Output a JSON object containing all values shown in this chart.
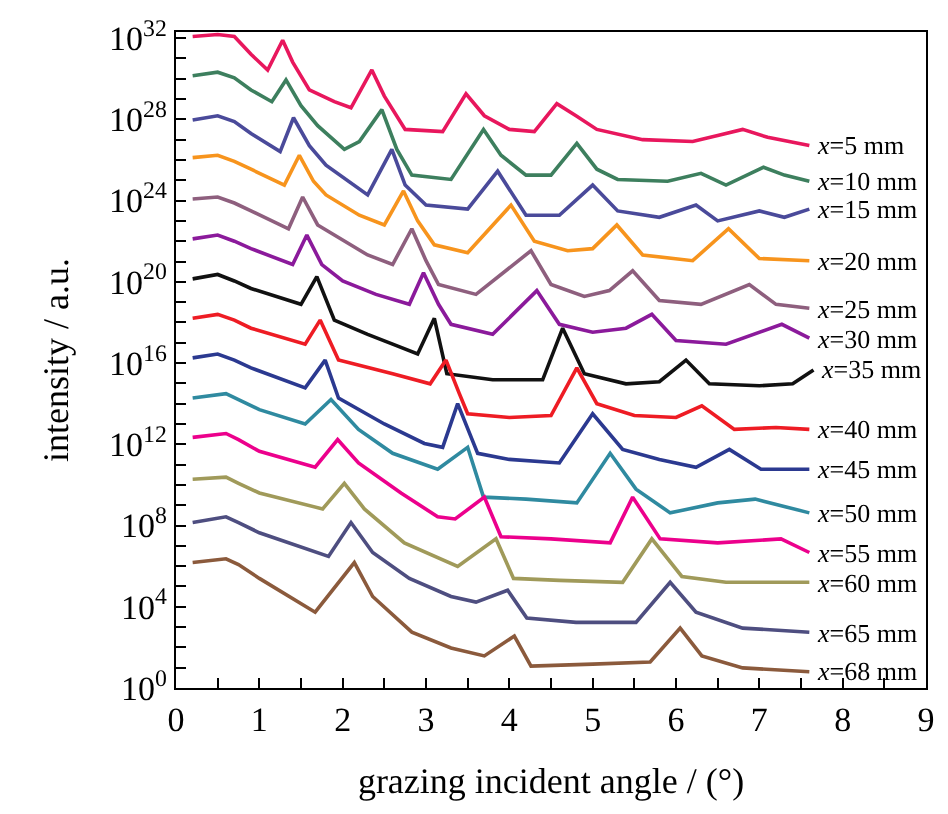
{
  "chart_data": {
    "type": "line",
    "xlabel": "grazing incident angle / (°)",
    "ylabel": "intensity / a.u.",
    "log": "y",
    "xlim": [
      0,
      9
    ],
    "xticks": [
      0,
      {
        "value": 0.5,
        "label": null
      },
      1,
      {
        "value": 1.5,
        "label": null
      },
      2,
      {
        "value": 2.5,
        "label": null
      },
      3,
      {
        "value": 3.5,
        "label": null
      },
      4,
      {
        "value": 4.5,
        "label": null
      },
      5,
      {
        "value": 5.5,
        "label": null
      },
      6,
      {
        "value": 6.5,
        "label": null
      },
      7,
      {
        "value": 7.5,
        "label": null
      },
      8,
      {
        "value": 8.5,
        "label": null
      },
      9
    ],
    "ylim": [
      1,
      2e+32
    ],
    "yticks": [
      {
        "value": 1,
        "label": "10$^{0}$"
      },
      {
        "value": 10.0,
        "label": null
      },
      {
        "value": 100.0,
        "label": null
      },
      {
        "value": 1000.0,
        "label": null
      },
      {
        "value": 10000.0,
        "label": "10$^{4}$"
      },
      {
        "value": 100000.0,
        "label": null
      },
      {
        "value": 1000000.0,
        "label": null
      },
      {
        "value": 10000000.0,
        "label": null
      },
      {
        "value": 100000000.0,
        "label": "10$^{8}$"
      },
      {
        "value": 1000000000.0,
        "label": null
      },
      {
        "value": 10000000000.0,
        "label": null
      },
      {
        "value": 100000000000.0,
        "label": null
      },
      {
        "value": 1000000000000.0,
        "label": "10$^{12}$"
      },
      {
        "value": 10000000000000.0,
        "label": null
      },
      {
        "value": 100000000000000.0,
        "label": null
      },
      {
        "value": 1000000000000000.0,
        "label": null
      },
      {
        "value": 1e+16,
        "label": "10$^{16}$"
      },
      {
        "value": 1e+17,
        "label": null
      },
      {
        "value": 1e+18,
        "label": null
      },
      {
        "value": 1e+19,
        "label": null
      },
      {
        "value": 1e+20,
        "label": "10$^{20}$"
      },
      {
        "value": 1e+21,
        "label": null
      },
      {
        "value": 1e+22,
        "label": null
      },
      {
        "value": 1e+23,
        "label": null
      },
      {
        "value": 1e+24,
        "label": "10$^{24}$"
      },
      {
        "value": 1e+25,
        "label": null
      },
      {
        "value": 1e+26,
        "label": null
      },
      {
        "value": 1e+27,
        "label": null
      },
      {
        "value": 1e+28,
        "label": "10$^{28}$"
      },
      {
        "value": 1e+29,
        "label": null
      },
      {
        "value": 1e+30,
        "label": null
      },
      {
        "value": 1e+31,
        "label": null
      },
      {
        "value": 1e+32,
        "label": "10$^{32}$"
      }
    ],
    "series": [
      {
        "name": "x=5 mm",
        "color": "#e8175d",
        "x": [
          0.2,
          0.5,
          0.7,
          0.9,
          1.1,
          1.28,
          1.4,
          1.6,
          1.9,
          2.1,
          2.35,
          2.5,
          2.75,
          3.2,
          3.48,
          3.7,
          4.0,
          4.3,
          4.57,
          4.8,
          5.05,
          5.6,
          6.2,
          6.5,
          6.8,
          7.1,
          7.6
        ],
        "values": [
          1.2e+32,
          1.5e+32,
          1.2e+32,
          1.6e+31,
          2.7e+30,
          7.9e+31,
          6.6e+30,
          2.8e+29,
          7.4e+28,
          3.7e+28,
          2.7e+30,
          1.4e+29,
          3.2e+27,
          2.5e+27,
          1.8e+29,
          1.5e+28,
          3.2e+27,
          2.5e+27,
          5.9e+28,
          1.5e+28,
          3.2e+27,
          1e+27,
          8.1e+26,
          1.6e+27,
          3.2e+27,
          1.3e+27,
          5.1e+26
        ]
      },
      {
        "name": "x=10 mm",
        "color": "#3d7f5e",
        "x": [
          0.2,
          0.5,
          0.7,
          0.9,
          1.15,
          1.32,
          1.5,
          1.7,
          2.02,
          2.2,
          2.47,
          2.65,
          2.83,
          3.3,
          3.69,
          3.9,
          4.2,
          4.5,
          4.81,
          5.05,
          5.3,
          5.9,
          6.3,
          6.6,
          7.05,
          7.3,
          7.6
        ],
        "values": [
          1.4e+30,
          2.1e+30,
          1.1e+30,
          2.8e+29,
          7.4e+28,
          8.7e+29,
          4.7e+28,
          4.9e+27,
          3.3e+26,
          8.1e+26,
          3e+28,
          3.3e+26,
          1.8e+25,
          1.1e+25,
          3.2e+27,
          1.7e+26,
          1.8e+25,
          1.8e+25,
          6.5e+26,
          3.5e+25,
          1.1e+25,
          8.9e+24,
          2.2e+25,
          5.8e+24,
          4.4e+25,
          1.8e+25,
          8.9e+24
        ]
      },
      {
        "name": "x=15 mm",
        "color": "#4a4a9a",
        "x": [
          0.2,
          0.5,
          0.7,
          0.9,
          1.25,
          1.41,
          1.6,
          1.8,
          2.3,
          2.59,
          2.75,
          3.0,
          3.5,
          3.86,
          4.2,
          4.6,
          5.0,
          5.3,
          5.8,
          6.24,
          6.5,
          7.0,
          7.3,
          7.6
        ],
        "values": [
          9.3e+27,
          1.5e+28,
          7.8e+27,
          2e+27,
          2.6e+26,
          1.2e+28,
          5.1e+26,
          5.5e+25,
          1.9e+24,
          3.3e+26,
          5.8e+24,
          6e+23,
          3.8e+23,
          2.8e+25,
          1.9e+23,
          1.9e+23,
          5.8e+24,
          3.1e+23,
          1.5e+23,
          6e+23,
          1e+23,
          3.1e+23,
          1.5e+23,
          3.8e+23
        ]
      },
      {
        "name": "x=20 mm",
        "color": "#f7941d",
        "x": [
          0.2,
          0.5,
          0.7,
          0.9,
          1.3,
          1.48,
          1.65,
          1.8,
          2.2,
          2.5,
          2.73,
          2.9,
          3.1,
          3.5,
          4.02,
          4.3,
          4.7,
          5.0,
          5.29,
          5.6,
          6.2,
          6.63,
          7.0,
          7.6
        ],
        "values": [
          1.3e+26,
          1.7e+26,
          8.5e+25,
          3.5e+25,
          5.8e+24,
          1.7e+26,
          8.9e+24,
          1.9e+24,
          1.9e+23,
          6.3e+22,
          3e+24,
          1e+23,
          6.6e+21,
          2.7e+21,
          6e+23,
          1e+22,
          3.4e+21,
          4.3e+21,
          6.3e+22,
          2.1e+21,
          1.1e+21,
          4.1e+22,
          1.4e+21,
          1.1e+21
        ]
      },
      {
        "name": "x=25 mm",
        "color": "#8e5f7e",
        "x": [
          0.2,
          0.5,
          0.7,
          0.9,
          1.35,
          1.52,
          1.7,
          1.9,
          2.3,
          2.6,
          2.83,
          3.0,
          3.15,
          3.6,
          4.26,
          4.5,
          4.9,
          5.2,
          5.48,
          5.8,
          6.3,
          6.88,
          7.2,
          7.6
        ],
        "values": [
          1.2e+24,
          1.5e+24,
          7.6e+23,
          3.1e+23,
          4.1e+22,
          1.5e+24,
          6.3e+22,
          2e+22,
          2.1e+21,
          7.1e+20,
          4.1e+22,
          1.1e+21,
          7.4e+19,
          2.4e+19,
          3.4e+21,
          7.4e+19,
          1.9e+19,
          3.7e+19,
          3.5e+20,
          1.2e+19,
          7.8e+18,
          7.4e+19,
          7.8e+18,
          5e+18
        ]
      },
      {
        "name": "x=30 mm",
        "color": "#8b1a9b",
        "x": [
          0.2,
          0.5,
          0.7,
          0.9,
          1.4,
          1.57,
          1.75,
          2.0,
          2.4,
          2.8,
          2.97,
          3.15,
          3.3,
          3.8,
          4.33,
          4.6,
          5.0,
          5.4,
          5.71,
          6.0,
          6.6,
          7.27,
          7.6
        ],
        "values": [
          1.3e+22,
          2e+22,
          1e+22,
          4.3e+21,
          7.1e+20,
          2e+22,
          7.1e+20,
          1.1e+20,
          2.4e+19,
          7.8e+18,
          2.8e+20,
          7.8e+18,
          8.1e+17,
          2.6e+17,
          3.7e+19,
          8.1e+17,
          3.3e+17,
          5.2e+17,
          2.5e+18,
          1.3e+17,
          8.5e+16,
          8.1e+17,
          1.7e+17
        ]
      },
      {
        "name": "x=35 mm",
        "color": "#111111",
        "x": [
          0.2,
          0.5,
          0.7,
          0.9,
          1.5,
          1.69,
          1.9,
          2.3,
          2.6,
          2.9,
          3.1,
          3.25,
          3.8,
          4.4,
          4.64,
          4.9,
          5.4,
          5.8,
          6.12,
          6.4,
          7.0,
          7.4,
          7.65
        ],
        "values": [
          1.4e+20,
          2.3e+20,
          1.1e+20,
          4.7e+19,
          7.8e+18,
          1.8e+20,
          1.3e+18,
          2.6e+17,
          8.5e+16,
          2.8e+16,
          1.6e+18,
          3000000000000000.0,
          1500000000000000.0,
          1500000000000000.0,
          5.2e+17,
          3000000000000000.0,
          950000000000000.0,
          1200000000000000.0,
          1.4e+16,
          950000000000000.0,
          760000000000000.0,
          950000000000000.0,
          4600000000000000.0
        ]
      },
      {
        "name": "x=40 mm",
        "color": "#ee1c24",
        "x": [
          0.2,
          0.5,
          0.7,
          0.9,
          1.55,
          1.73,
          1.95,
          2.6,
          3.05,
          3.24,
          3.4,
          3.5,
          4.0,
          4.5,
          4.81,
          5.05,
          5.5,
          6.0,
          6.31,
          6.7,
          7.2,
          7.6
        ],
        "values": [
          1.6e+18,
          2.5e+18,
          1.3e+18,
          5.2e+17,
          8.5e+16,
          1.3e+18,
          1.4e+16,
          3000000000000000.0,
          950000000000000.0,
          1.4e+16,
          310000000000000.0,
          32000000000000.0,
          21000000000000.0,
          26000000000000.0,
          5800000000000000.0,
          100000000000000.0,
          26000000000000.0,
          21000000000000.0,
          79000000000000.0,
          5400000000000.0,
          6700000000000.0,
          5400000000000.0
        ]
      },
      {
        "name": "x=45 mm",
        "color": "#2b3990",
        "x": [
          0.2,
          0.5,
          0.7,
          0.9,
          1.55,
          1.79,
          1.95,
          2.5,
          2.98,
          3.2,
          3.38,
          3.62,
          4.0,
          4.6,
          5.0,
          5.36,
          5.8,
          6.24,
          6.64,
          7.02,
          7.6
        ],
        "values": [
          1.8e+16,
          2.8e+16,
          1.4e+16,
          5800000000000000.0,
          600000000000000.0,
          1.4e+16,
          190000000000000.0,
          10000000000000.0,
          1100000000000.0,
          710000000000.0,
          100000000000000.0,
          360000000000.0,
          180000000000.0,
          120000000000.0,
          32000000000000.0,
          560000000000.0,
          180000000000.0,
          74000000000.0,
          560000000000.0,
          59000000000.0,
          59000000000.0
        ]
      },
      {
        "name": "x=50 mm",
        "color": "#2f8aa0",
        "x": [
          0.2,
          0.6,
          0.75,
          1.0,
          1.55,
          1.86,
          2.19,
          2.6,
          3.14,
          3.5,
          3.69,
          4.2,
          4.81,
          5.21,
          5.52,
          5.93,
          6.5,
          6.95,
          7.6
        ],
        "values": [
          190000000000000.0,
          310000000000000.0,
          160000000000000.0,
          51000000000000.0,
          10000000000000.0,
          160000000000000.0,
          5400000000000.0,
          360000000000.0,
          59000000000.0,
          710000000000.0,
          2500000000.0,
          2000000000.0,
          1300000000.0,
          360000000000.0,
          6200000000.0,
          420000000.0,
          1300000000.0,
          2000000000.0,
          420000000.0
        ]
      },
      {
        "name": "x=55 mm",
        "color": "#ec008c",
        "x": [
          0.2,
          0.6,
          0.75,
          1.0,
          1.67,
          1.94,
          2.19,
          2.7,
          3.14,
          3.35,
          3.7,
          3.9,
          4.5,
          5.21,
          5.48,
          5.81,
          6.5,
          7.26,
          7.6
        ],
        "values": [
          2200000000000.0,
          3400000000000.0,
          1700000000000.0,
          450000000000.0,
          74000000000.0,
          1700000000000.0,
          120000000000.0,
          4000000000.0,
          270000000.0,
          210000000.0,
          2500000000.0,
          28000000.0,
          22000000.0,
          14000000.0,
          2500000000.0,
          22000000.0,
          14000000.0,
          22000000.0,
          4700000.0
        ]
      },
      {
        "name": "x=60 mm",
        "color": "#a09a5a",
        "x": [
          0.2,
          0.6,
          0.75,
          1.0,
          1.76,
          2.02,
          2.26,
          2.74,
          3.38,
          3.84,
          4.05,
          4.6,
          5.36,
          5.71,
          6.07,
          6.6,
          7.6
        ],
        "values": [
          19000000000.0,
          24000000000.0,
          12000000000.0,
          4000000000.0,
          660000000.0,
          12000000000.0,
          660000000.0,
          14000000.0,
          960000.0,
          22000000.0,
          250000.0,
          200000.0,
          160000.0,
          22000000.0,
          310000.0,
          160000.0,
          160000.0
        ]
      },
      {
        "name": "x=65 mm",
        "color": "#4e4e80",
        "x": [
          0.2,
          0.6,
          0.75,
          1.0,
          1.83,
          2.1,
          2.36,
          2.8,
          3.3,
          3.6,
          3.98,
          4.21,
          4.8,
          5.52,
          5.93,
          6.24,
          6.8,
          7.6
        ],
        "values": [
          140000000.0,
          270000000.0,
          140000000.0,
          44000000.0,
          3000000.0,
          140000000.0,
          4700000.0,
          250000.0,
          32000.0,
          17000.0,
          65000.0,
          2800.0,
          1700.0,
          1700.0,
          160000.0,
          5400.0,
          890.0,
          560.0
        ]
      },
      {
        "name": "x=68 mm",
        "color": "#8b5a3c",
        "x": [
          0.2,
          0.6,
          0.75,
          1.0,
          1.67,
          2.14,
          2.36,
          2.83,
          3.3,
          3.7,
          4.06,
          4.26,
          5.0,
          5.69,
          6.05,
          6.31,
          6.8,
          7.6
        ],
        "values": [
          1500000.0,
          2300000.0,
          1200000.0,
          250000.0,
          5400.0,
          1500000.0,
          32000.0,
          560.0,
          93,
          38,
          360.0,
          12,
          15,
          19,
          890.0,
          38,
          9.8,
          6.3
        ]
      }
    ]
  }
}
